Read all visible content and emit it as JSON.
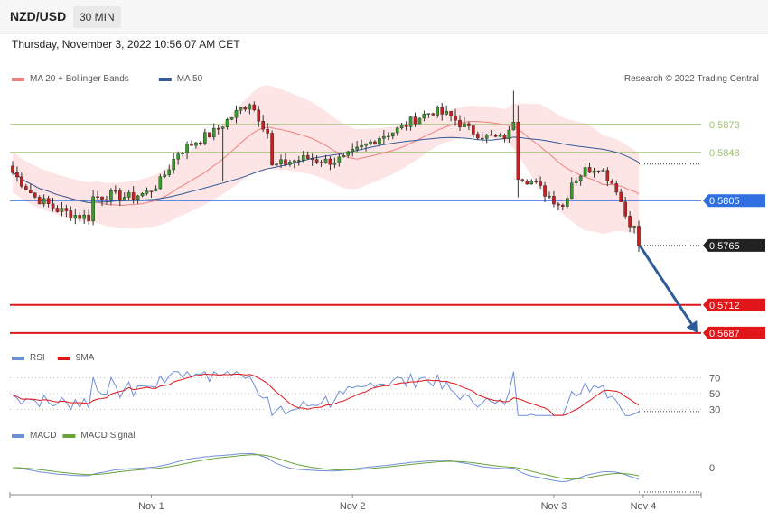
{
  "header": {
    "symbol": "NZD/USD",
    "timeframe": "30 MIN",
    "datetime": "Thursday, November 3, 2022 10:56:07 AM CET"
  },
  "watermark": "Research © 2022 Trading Central",
  "colors": {
    "bull": "#3a9a2c",
    "bear": "#c82020",
    "ma20": "#f08080",
    "ma50": "#345a9a",
    "bb_fill": "#fde0e0",
    "resistance": "#9bc46b",
    "pivot": "#2f6fe0",
    "support": "#e0161b",
    "last": "#333333",
    "rsi": "#6f8fd8",
    "rsi_ma": "#e0161b",
    "macd": "#6f8fd8",
    "macd_signal": "#6aa23a",
    "arrow": "#2d5b9a"
  },
  "legends": {
    "main": [
      {
        "label": "MA 20 + Bollinger Bands",
        "color": "#f08080"
      },
      {
        "label": "MA 50",
        "color": "#345a9a"
      }
    ],
    "rsi": [
      {
        "label": "RSI",
        "color": "#6f8fd8"
      },
      {
        "label": "9MA",
        "color": "#e0161b"
      }
    ],
    "macd": [
      {
        "label": "MACD",
        "color": "#6f8fd8"
      },
      {
        "label": "MACD Signal",
        "color": "#6aa23a"
      }
    ]
  },
  "chart_data": {
    "type": "candlestick",
    "title": "NZD/USD",
    "timeframe": "30 MIN",
    "x_ticks": [
      "Nov 1",
      "Nov 2",
      "Nov 3",
      "Nov 4"
    ],
    "ylim": [
      0.5678,
      0.5905
    ],
    "levels": [
      {
        "label": "0.5873",
        "value": 0.5873,
        "kind": "resistance"
      },
      {
        "label": "0.5848",
        "value": 0.5848,
        "kind": "resistance"
      },
      {
        "label": "0.5805",
        "value": 0.5805,
        "kind": "pivot"
      },
      {
        "label": "0.5765",
        "value": 0.5765,
        "kind": "last"
      },
      {
        "label": "0.5712",
        "value": 0.5712,
        "kind": "support"
      },
      {
        "label": "0.5687",
        "value": 0.5687,
        "kind": "support"
      }
    ],
    "close_anchors": [
      [
        0,
        0.583
      ],
      [
        5,
        0.5808
      ],
      [
        10,
        0.5797
      ],
      [
        14,
        0.5792
      ],
      [
        17,
        0.579
      ],
      [
        18,
        0.5808
      ],
      [
        22,
        0.581
      ],
      [
        26,
        0.5808
      ],
      [
        30,
        0.5812
      ],
      [
        33,
        0.5822
      ],
      [
        37,
        0.5848
      ],
      [
        41,
        0.5858
      ],
      [
        45,
        0.5866
      ],
      [
        49,
        0.588
      ],
      [
        53,
        0.5893
      ],
      [
        57,
        0.5866
      ],
      [
        58,
        0.5835
      ],
      [
        62,
        0.584
      ],
      [
        66,
        0.5843
      ],
      [
        70,
        0.584
      ],
      [
        74,
        0.5842
      ],
      [
        78,
        0.5852
      ],
      [
        82,
        0.5862
      ],
      [
        86,
        0.5868
      ],
      [
        90,
        0.5878
      ],
      [
        94,
        0.5885
      ],
      [
        98,
        0.588
      ],
      [
        102,
        0.5868
      ],
      [
        106,
        0.5862
      ],
      [
        109,
        0.586
      ],
      [
        111,
        0.5865
      ],
      [
        112,
        0.5878
      ],
      [
        113,
        0.5828
      ],
      [
        116,
        0.5822
      ],
      [
        119,
        0.5812
      ],
      [
        121,
        0.5806
      ],
      [
        123,
        0.58
      ],
      [
        125,
        0.5822
      ],
      [
        128,
        0.5832
      ],
      [
        131,
        0.5836
      ],
      [
        133,
        0.5826
      ],
      [
        135,
        0.5816
      ],
      [
        137,
        0.5792
      ],
      [
        139,
        0.578
      ],
      [
        140,
        0.5768
      ]
    ],
    "bb_halfwidth": [
      [
        0,
        0.0018
      ],
      [
        17,
        0.0018
      ],
      [
        30,
        0.0022
      ],
      [
        45,
        0.003
      ],
      [
        56,
        0.0038
      ],
      [
        75,
        0.0028
      ],
      [
        95,
        0.0014
      ],
      [
        110,
        0.0014
      ],
      [
        118,
        0.0038
      ],
      [
        128,
        0.0048
      ],
      [
        140,
        0.0036
      ]
    ],
    "rsi": {
      "ticks": [
        70,
        50,
        30
      ],
      "range": [
        20,
        80
      ],
      "last": 27
    },
    "macd": {
      "ticks": [
        0
      ]
    },
    "forecast_arrow": {
      "from": 0.5765,
      "to": 0.5687
    }
  }
}
